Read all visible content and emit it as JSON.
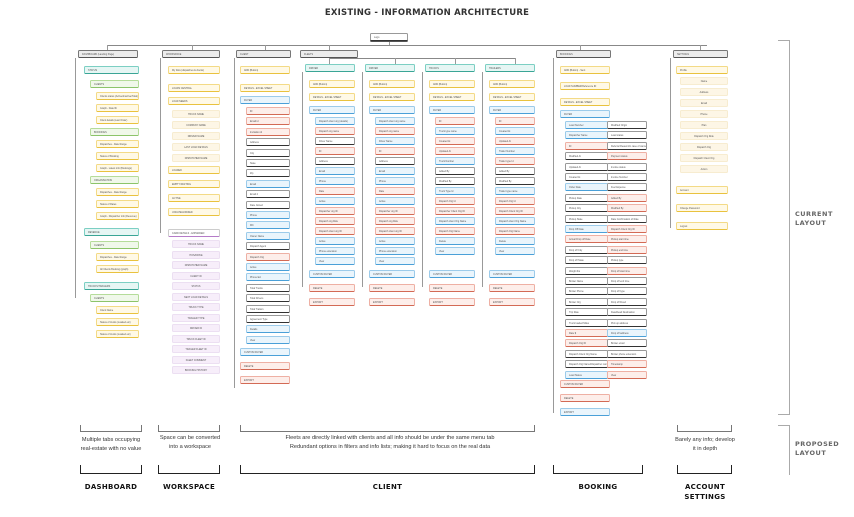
{
  "title": "EXISTING - INFORMATION ARCHITECTURE",
  "root_label": "Logo",
  "side_labels": {
    "current": [
      "CURRENT",
      "LAYOUT"
    ],
    "proposed": [
      "PROPOSED",
      "LAYOUT"
    ]
  },
  "columns": {
    "dashboard": {
      "header": "DASHBOARD (Landing Page)",
      "status": "STATUS",
      "status_groups": [
        {
          "label": "CLIENTS",
          "items": [
            "Clients status (Active/Inactive/Total)",
            "Graph - Date filt",
            "Client details (Last Order)"
          ]
        },
        {
          "label": "BOOKINGS",
          "items": [
            "Dispatches - Date Range",
            "Status of Booking",
            "Graph - Latest info (Bookings)"
          ]
        },
        {
          "label": "ORGANISATION",
          "items": [
            "Dispatches - Date Range",
            "Status of Rates",
            "Graph - Dispatcher info (Revenue)"
          ]
        }
      ],
      "revenue": "REVENUE",
      "revenue_group": {
        "label": "CLIENTS",
        "items": [
          "Dispatches - Date Range",
          "All Clients Booking (graph)"
        ]
      },
      "trucks": "TRUCKS/TRAILERS",
      "trucks_group": {
        "label": "CLIENTS",
        "items": [
          "Client Name",
          "Status of trucks (Loaded etc)",
          "Status of trucks (Loaded etc)"
        ]
      }
    },
    "workspace": {
      "header": "WORKSPACE",
      "subheader": "My links (dispatches & clients)",
      "loads": "LOADS CENTRAL",
      "load_needs": "LOAD NEEDS",
      "load_needs_items": [
        "TRUCK NAME",
        "COMPANY NAME",
        "DRIVER NAME",
        "LAST LOAD DETAILS",
        "DISPATCHER NAME"
      ],
      "other_items": [
        "LOADED",
        "EMPTY/WAITING",
        "ACTIVE",
        "UNCATEGORIZED"
      ],
      "cards_header": "CARD DETAILS - EXPANDED",
      "card_items": [
        "TRUCK NAME",
        "HOS/DRIVE",
        "DISPATCHER NAME",
        "CLIENT ID",
        "STATUS",
        "NEXT LOAD DETAILS",
        "TRUCK TYPE",
        "TRAILER TYPE",
        "DRIVER ID",
        "TRUCK FLEET ID",
        "TRAILER FLEET ID",
        "FLEET COMMENT",
        "BOOKING HISTORY"
      ]
    },
    "client": {
      "header": "CLIENT",
      "add": "ADD (Button)",
      "details": "DETAILS - EXCEL SHEET",
      "filter": "FILTER",
      "filter_items": [
        "ID",
        "Email id",
        "Invitation id",
        "Address",
        "City",
        "State",
        "Zip",
        "Email",
        "Email 2",
        "Date Joined",
        "Phone",
        "MC",
        "Owner Name",
        "Dispatch Agent",
        "Dispatch Org",
        "Active",
        "Phone Ext",
        "Total Trucks",
        "Total Drivers",
        "Total Trailers",
        "Agreement Type",
        "Details",
        "View"
      ],
      "filter_colors": [
        "red",
        "red",
        "red",
        "dark",
        "dark",
        "dark",
        "dark",
        "blue",
        "dark",
        "dark",
        "blue",
        "blue",
        "blue",
        "dark",
        "red",
        "blue",
        "blue",
        "dark",
        "dark",
        "dark",
        "dark",
        "blue",
        "blue"
      ],
      "custom_filter": "CUSTOM FILTER",
      "delete": "DELETE",
      "export": "EXPORT"
    },
    "fleets": {
      "header": "FLEETS",
      "subcolumns": [
        {
          "header": "DRIVER",
          "add": "ADD (Button)",
          "details": "DETAILS - EXCEL SHEET",
          "filter": "FILTER",
          "items": [
            "Dispatch client org (details)",
            "Dispatch org name",
            "Driver Name",
            "ID",
            "Address",
            "Email",
            "Phone",
            "Rate",
            "Active",
            "Dispatcher org ID",
            "Dispatch org Role",
            "Dispatch client org ID",
            "Active",
            "Phone extension",
            "View"
          ],
          "colors": [
            "blue",
            "red",
            "dark",
            "red",
            "dark",
            "blue",
            "blue",
            "red",
            "blue",
            "red",
            "red",
            "red",
            "blue",
            "blue",
            "blue"
          ]
        },
        {
          "header": "DRIVER",
          "add": "ADD (Button)",
          "details": "DETAILS - EXCEL SHEET",
          "filter": "FILTER",
          "items": [
            "Dispatch client org name",
            "Dispatch org name",
            "Driver Name",
            "ID",
            "Address",
            "Email",
            "Phone",
            "Rate",
            "Active",
            "Dispatcher org ID",
            "Dispatch org Role",
            "Dispatch client org ID",
            "Active",
            "Phone extension",
            "View"
          ],
          "colors": [
            "blue",
            "red",
            "blue",
            "red",
            "dark",
            "blue",
            "blue",
            "red",
            "blue",
            "red",
            "red",
            "red",
            "blue",
            "blue",
            "blue"
          ]
        },
        {
          "header": "TRUCKS",
          "add": "ADD (Button)",
          "details": "DETAILS - EXCEL SHEET",
          "filter": "FILTER",
          "items": [
            "ID",
            "Truck type name",
            "Created At",
            "Updated At",
            "Truck Number",
            "Added By",
            "Modified By",
            "Truck Type Id",
            "Dispatch Org Id",
            "Dispatcher Client Org ID",
            "Dispatch client Org Name",
            "Dispatch Org Name",
            "Delete",
            "View"
          ],
          "colors": [
            "red",
            "blue",
            "red",
            "red",
            "blue",
            "dark",
            "dark",
            "blue",
            "red",
            "red",
            "blue",
            "red",
            "blue",
            "blue"
          ]
        },
        {
          "header": "TRAILERS",
          "add": "ADD (Button)",
          "details": "DETAILS - EXCEL SHEET",
          "filter": "FILTER",
          "items": [
            "ID",
            "Created At",
            "Updated At",
            "Trailer Number",
            "Trailer type Id",
            "Added By",
            "Modified By",
            "Trailer type name",
            "Dispatch Org Id",
            "Dispatch Client Org ID",
            "Dispatch client Org Name",
            "Dispatch Org Name",
            "Delete",
            "View"
          ],
          "colors": [
            "red",
            "blue",
            "red",
            "blue",
            "red",
            "dark",
            "dark",
            "blue",
            "red",
            "red",
            "blue",
            "red",
            "blue",
            "blue"
          ]
        }
      ],
      "custom_filter": "CUSTOM FILTER",
      "delete": "DELETE",
      "export": "EXPORT"
    },
    "bookings": {
      "header": "BOOKINGS",
      "add": "ADD (Button) - Sent",
      "load_number": "LOAD NUMBER/Reference ID",
      "details": "DETAILS - EXCEL SHEET",
      "filter": "FILTER",
      "left_items": [
        "Load Number",
        "Dispatcher Name",
        "ID",
        "Modified At",
        "Updated At",
        "Created At",
        "Order Date",
        "Pickup Date",
        "Pickup City",
        "Pickup State",
        "Drop Off Date",
        "Actual Drop off Date",
        "Drop off City",
        "Drop off State",
        "Weight lbs",
        "Broker Name",
        "Broker Phone",
        "Broker Org",
        "Trip Rate",
        "Truck loaded Miles",
        "Rate $",
        "Dispatch Org ID",
        "Dispatch Client Org Name",
        "Dispatch Org Name/Dispatcher name",
        "Load Status"
      ],
      "left_colors": [
        "blue",
        "blue",
        "red",
        "dark",
        "dark",
        "dark",
        "blue",
        "dark",
        "dark",
        "dark",
        "blue",
        "red",
        "dark",
        "dark",
        "dark",
        "dark",
        "dark",
        "dark",
        "dark",
        "dark",
        "red",
        "red",
        "dark",
        "dark",
        "blue"
      ],
      "right_items": [
        "Modified Origin",
        "Load status",
        "Referral Reason/In case of cancellation",
        "Payment status",
        "Invoice status",
        "Invoice Number",
        "Fuel Expense",
        "Added By",
        "Modified By",
        "Date Confirmation of Rate",
        "Dispatch Client Org ID",
        "Pickup start time",
        "Pickup end time",
        "Pickup type",
        "Drop off start time",
        "Drop off end time",
        "Drop off type",
        "Drop off Fixed",
        "Deadhead Destination",
        "Pick up address",
        "Drop off address",
        "Broker email",
        "Broker phone extension",
        "Timestamp",
        "View"
      ],
      "right_colors": [
        "dark",
        "dark",
        "dark",
        "red",
        "dark",
        "dark",
        "dark",
        "red",
        "red",
        "dark",
        "red",
        "red",
        "red",
        "dark",
        "red",
        "dark",
        "dark",
        "dark",
        "dark",
        "dark",
        "blue",
        "dark",
        "dark",
        "red",
        "red"
      ],
      "custom_filter": "CUSTOM FILTER",
      "delete": "DELETE",
      "export": "EXPORT"
    },
    "settings": {
      "header": "SETTINGS",
      "profile": "Profile",
      "profile_items": [
        "Name",
        "Address",
        "Email",
        "Phone",
        "Plan",
        "Dispatch Org Role",
        "Dispatch Org",
        "Dispatch Client Org",
        "Action"
      ],
      "account": "Account",
      "change_password": "Change Password",
      "logout": "Logout"
    }
  },
  "proposed": {
    "notes": {
      "dashboard": [
        "Multiple tabs occupying",
        "real-estate with no value"
      ],
      "workspace": [
        "Space can be converted",
        "into a workspace"
      ],
      "client": [
        "Fleets are directly linked with clients and all info should be under the same menu tab",
        "Redundant options in filters and info lists; making it hard to focus on the real data"
      ],
      "settings": [
        "Barely any info; develop",
        "it in depth"
      ]
    },
    "sections": {
      "dashboard": "DASHBOARD",
      "workspace": "WORKSPACE",
      "client": "CLIENT",
      "booking": "BOOKING",
      "settings": [
        "ACCOUNT",
        "SETTINGS"
      ]
    }
  }
}
